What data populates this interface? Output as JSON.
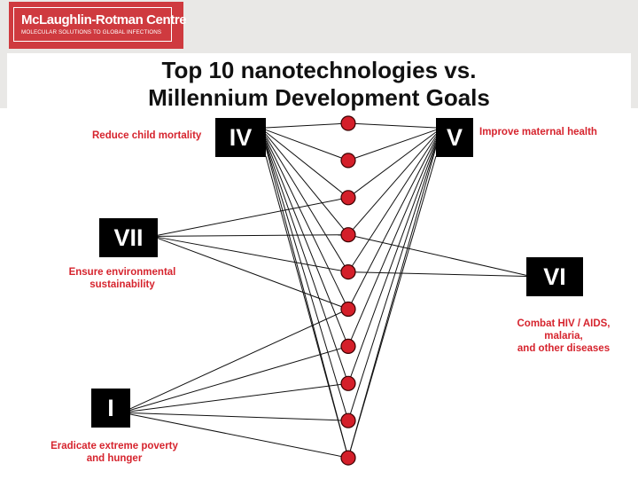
{
  "logo": {
    "name": "McLaughlin-Rotman Centre",
    "tagline": "MOLECULAR SOLUTIONS TO GLOBAL INFECTIONS"
  },
  "title": {
    "line1": "Top 10 nanotechnologies vs.",
    "line2": "Millennium Development Goals"
  },
  "goals": {
    "I": {
      "numeral": "I",
      "label_lines": [
        "Eradicate extreme poverty",
        "and hunger"
      ]
    },
    "IV": {
      "numeral": "IV",
      "label_lines": [
        "Reduce child mortality"
      ]
    },
    "V": {
      "numeral": "V",
      "label_lines": [
        "Improve maternal health"
      ]
    },
    "VI": {
      "numeral": "VI",
      "label_lines": [
        "Combat HIV / AIDS,",
        "malaria,",
        "and other diseases"
      ]
    },
    "VII": {
      "numeral": "VII",
      "label_lines": [
        "Ensure environmental",
        "sustainability"
      ]
    }
  },
  "nanotech_node_count": 10,
  "connections": [
    {
      "node": 1,
      "goals": [
        "IV",
        "V"
      ]
    },
    {
      "node": 2,
      "goals": [
        "IV",
        "V"
      ]
    },
    {
      "node": 3,
      "goals": [
        "IV",
        "V",
        "VII"
      ]
    },
    {
      "node": 4,
      "goals": [
        "IV",
        "V",
        "VII",
        "VI"
      ]
    },
    {
      "node": 5,
      "goals": [
        "IV",
        "V",
        "VII",
        "VI"
      ]
    },
    {
      "node": 6,
      "goals": [
        "IV",
        "V",
        "VII",
        "I"
      ]
    },
    {
      "node": 7,
      "goals": [
        "IV",
        "V",
        "I"
      ]
    },
    {
      "node": 8,
      "goals": [
        "IV",
        "V",
        "I"
      ]
    },
    {
      "node": 9,
      "goals": [
        "IV",
        "V",
        "I"
      ]
    },
    {
      "node": 10,
      "goals": [
        "IV",
        "V",
        "I"
      ]
    }
  ],
  "colors": {
    "node_fill": "#d41f2a",
    "label_text": "#d6242e",
    "logo_bg": "#cf3a3f",
    "band": "#e9e8e6"
  }
}
